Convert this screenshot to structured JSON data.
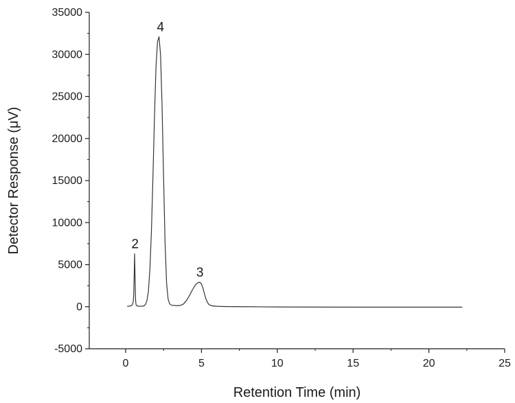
{
  "chart_data": {
    "type": "line",
    "title": "",
    "xlabel": "Retention Time (min)",
    "ylabel": "Detector Response (μV)",
    "xlim": [
      -2.4,
      25
    ],
    "ylim": [
      -5000,
      35000
    ],
    "xticks": [
      0,
      5,
      10,
      15,
      20,
      25
    ],
    "yticks": [
      -5000,
      0,
      5000,
      10000,
      15000,
      20000,
      25000,
      30000,
      35000
    ],
    "grid": false,
    "legend": "none",
    "series": [
      {
        "color": "#333333",
        "x": [
          0.1,
          0.2,
          0.3,
          0.4,
          0.45,
          0.5,
          0.53,
          0.56,
          0.59,
          0.62,
          0.65,
          0.68,
          0.71,
          0.75,
          0.8,
          0.9,
          1.0,
          1.1,
          1.2,
          1.3,
          1.4,
          1.5,
          1.6,
          1.7,
          1.8,
          1.9,
          2.0,
          2.1,
          2.2,
          2.3,
          2.4,
          2.5,
          2.6,
          2.7,
          2.8,
          2.9,
          3.0,
          3.2,
          3.4,
          3.6,
          3.8,
          4.0,
          4.2,
          4.4,
          4.6,
          4.8,
          4.9,
          5.0,
          5.1,
          5.2,
          5.3,
          5.4,
          5.5,
          5.7,
          6.0,
          6.5,
          7.0,
          8.0,
          10.0,
          12.0,
          15.0,
          18.0,
          20.0,
          22.2
        ],
        "y": [
          50,
          60,
          80,
          150,
          300,
          600,
          1400,
          3500,
          6300,
          3500,
          900,
          300,
          150,
          100,
          80,
          60,
          50,
          60,
          100,
          250,
          700,
          1800,
          4500,
          9000,
          15500,
          22500,
          28500,
          31500,
          32100,
          30000,
          24000,
          15500,
          7500,
          2800,
          900,
          350,
          200,
          150,
          120,
          150,
          300,
          700,
          1300,
          2000,
          2600,
          2900,
          2900,
          2700,
          2200,
          1500,
          900,
          500,
          250,
          100,
          50,
          20,
          10,
          0,
          -30,
          -40,
          -50,
          -50,
          -50,
          -50
        ]
      }
    ],
    "annotations": [
      {
        "text": "2",
        "x": 0.62,
        "y": 6300
      },
      {
        "text": "4",
        "x": 2.3,
        "y": 32100
      },
      {
        "text": "3",
        "x": 4.9,
        "y": 2900
      }
    ]
  }
}
